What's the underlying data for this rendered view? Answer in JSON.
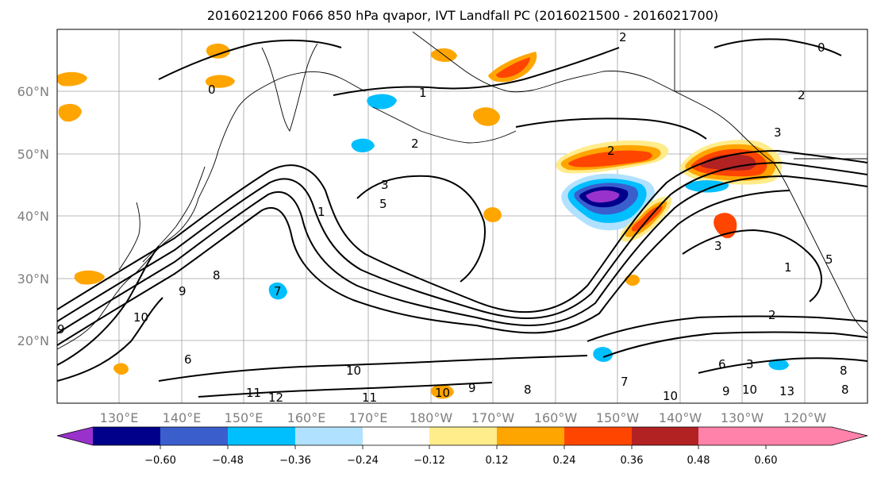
{
  "title": "2016021200 F066 850 hPa qvapor, IVT Landfall PC (2016021500 - 2016021700)",
  "latitude_labels": [
    "60°N",
    "50°N",
    "40°N",
    "30°N",
    "20°N"
  ],
  "longitude_labels": [
    "130°E",
    "140°E",
    "150°E",
    "160°E",
    "170°E",
    "180°W",
    "170°W",
    "160°W",
    "150°W",
    "140°W",
    "130°W",
    "120°W"
  ],
  "colorbar": {
    "colors": [
      "#9932cc",
      "#00008b",
      "#3a5fcd",
      "#00bfff",
      "#b0e2ff",
      "#ffffff",
      "#ffec8b",
      "#ffa500",
      "#ff4500",
      "#b22222",
      "#ff82ab"
    ],
    "ticks": [
      "−0.60",
      "−0.48",
      "−0.36",
      "−0.24",
      "−0.12",
      "0.12",
      "0.24",
      "0.36",
      "0.48",
      "0.60"
    ],
    "extend": "both"
  },
  "contour_labels": [
    "2",
    "0",
    "1",
    "0",
    "2",
    "2",
    "3",
    "2",
    "3",
    "3",
    "5",
    "1",
    "9",
    "8",
    "7",
    "10",
    "6",
    "9",
    "10",
    "11",
    "12",
    "11",
    "10",
    "9",
    "10",
    "8",
    "7",
    "6",
    "2",
    "1",
    "5",
    "3",
    "8",
    "9",
    "10",
    "13",
    "8"
  ]
}
